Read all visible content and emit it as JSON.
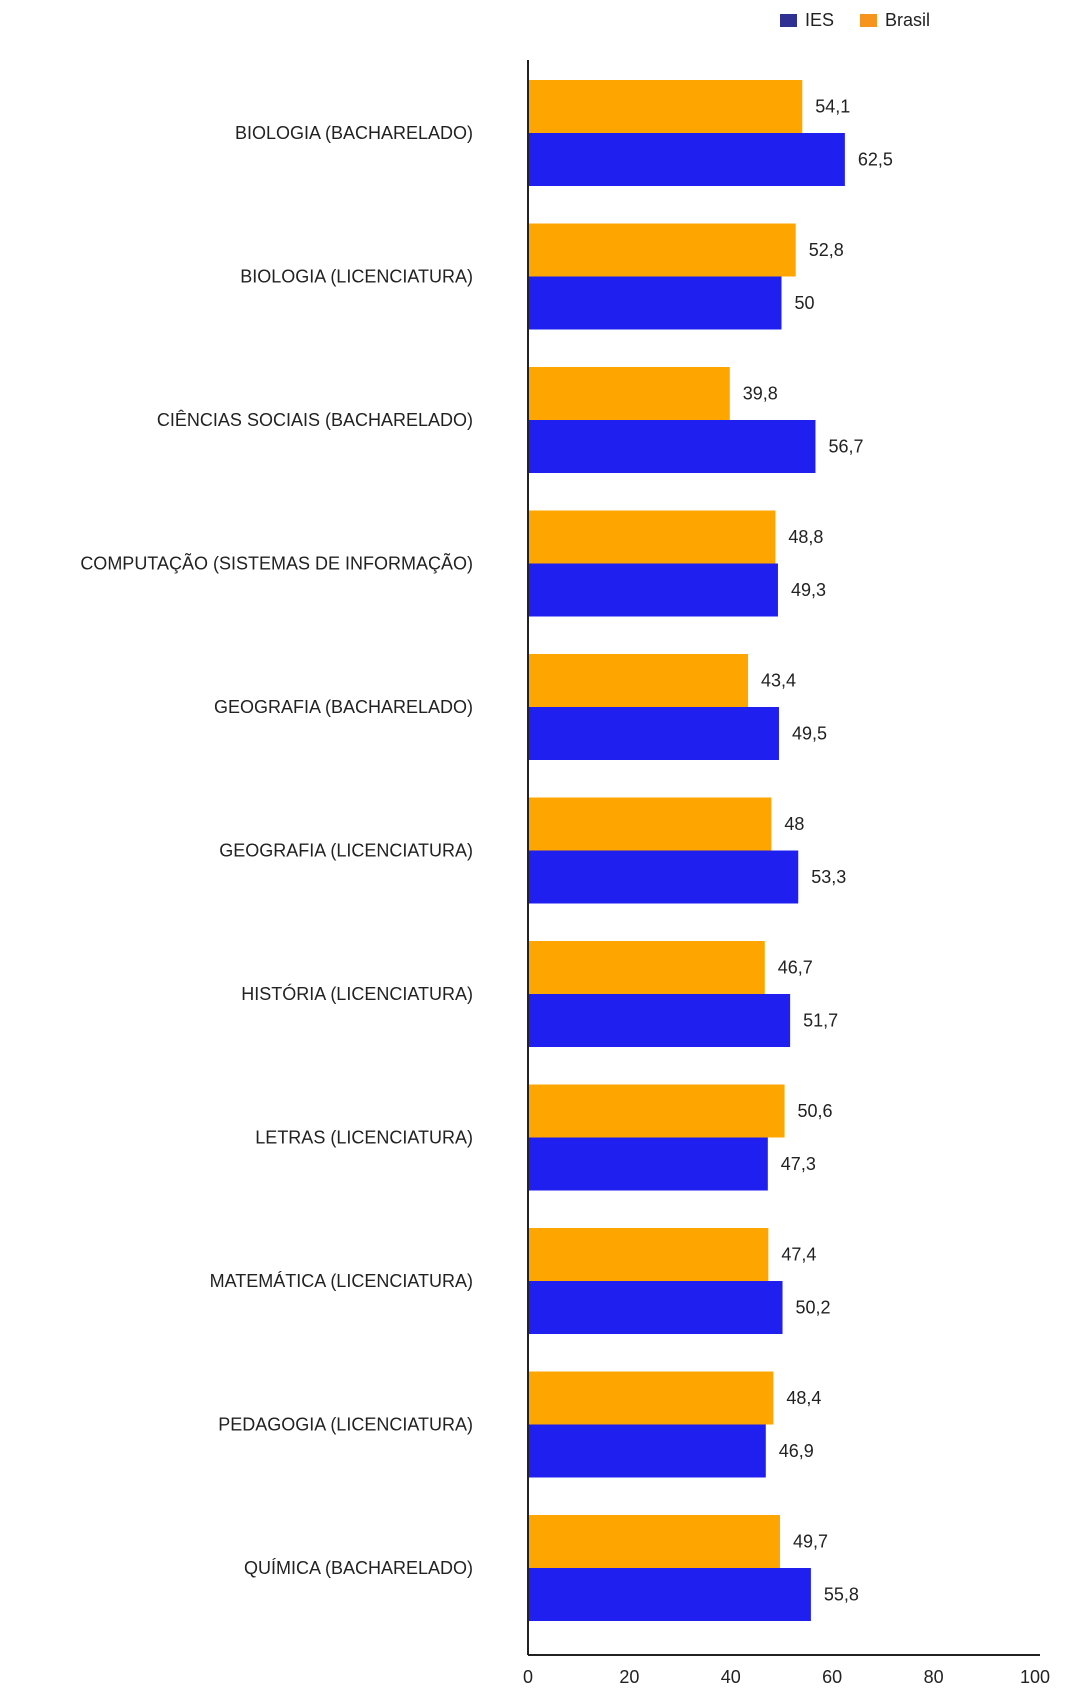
{
  "chart_data": {
    "type": "bar",
    "orientation": "horizontal",
    "categories": [
      "BIOLOGIA (BACHARELADO)",
      "BIOLOGIA (LICENCIATURA)",
      "CIÊNCIAS SOCIAIS (BACHARELADO)",
      "COMPUTAÇÃO (SISTEMAS DE INFORMAÇÃO)",
      "GEOGRAFIA (BACHARELADO)",
      "GEOGRAFIA (LICENCIATURA)",
      "HISTÓRIA (LICENCIATURA)",
      "LETRAS (LICENCIATURA)",
      "MATEMÁTICA (LICENCIATURA)",
      "PEDAGOGIA (LICENCIATURA)",
      "QUÍMICA (BACHARELADO)"
    ],
    "series": [
      {
        "name": "Brasil",
        "color": "#FFA500",
        "values": [
          54.1,
          52.8,
          39.8,
          48.8,
          43.4,
          48,
          46.7,
          50.6,
          47.4,
          48.4,
          49.7
        ],
        "labels": [
          "54,1",
          "52,8",
          "39,8",
          "48,8",
          "43,4",
          "48",
          "46,7",
          "50,6",
          "47,4",
          "48,4",
          "49,7"
        ]
      },
      {
        "name": "IES",
        "color": "#1F1FF0",
        "values": [
          62.5,
          50,
          56.7,
          49.3,
          49.5,
          53.3,
          51.7,
          47.3,
          50.2,
          46.9,
          55.8
        ],
        "labels": [
          "62,5",
          "50",
          "56,7",
          "49,3",
          "49,5",
          "53,3",
          "51,7",
          "47,3",
          "50,2",
          "46,9",
          "55,8"
        ]
      }
    ],
    "legend": [
      {
        "name": "IES",
        "color": "#2E3192"
      },
      {
        "name": "Brasil",
        "color": "#F7941D"
      }
    ],
    "legend_position": "top-right",
    "xlim": [
      0,
      100
    ],
    "xticks": [
      "0",
      "20",
      "40",
      "60",
      "80",
      "100"
    ],
    "grid": false,
    "title": "",
    "xlabel": "",
    "ylabel": ""
  }
}
